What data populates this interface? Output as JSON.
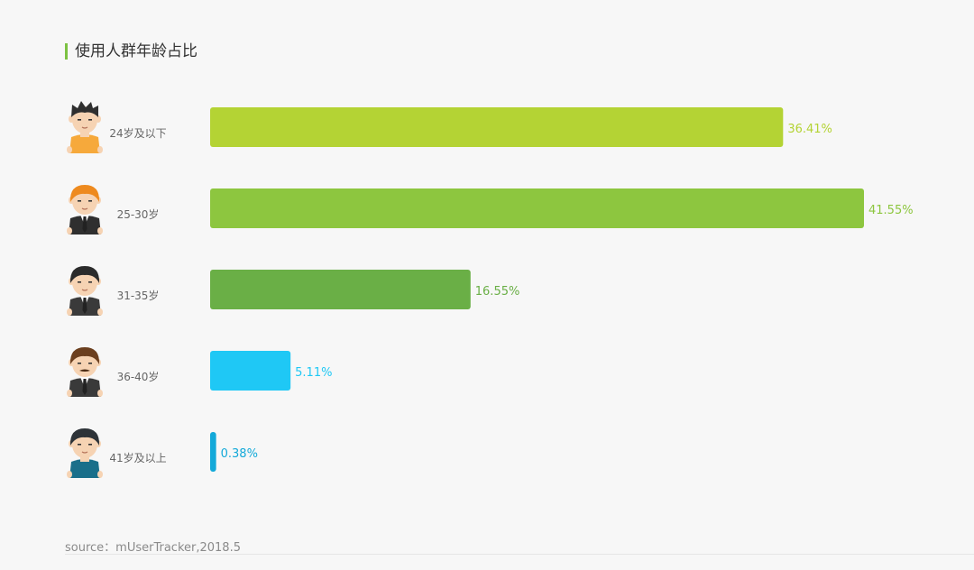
{
  "header": {
    "title": "使用人群年龄占比",
    "accent_color": "#7cc242"
  },
  "chart_data": {
    "type": "bar",
    "orientation": "horizontal",
    "title": "使用人群年龄占比",
    "categories": [
      "24岁及以下",
      "25-30岁",
      "31-35岁",
      "36-40岁",
      "41岁及以上"
    ],
    "values": [
      36.41,
      41.55,
      16.55,
      5.11,
      0.38
    ],
    "value_labels": [
      "36.41%",
      "41.55%",
      "16.55%",
      "5.11%",
      "0.38%"
    ],
    "colors": [
      "#b4d334",
      "#8dc63f",
      "#6aaf46",
      "#1fc8f5",
      "#13a9d9"
    ],
    "xlim": [
      0,
      41.55
    ],
    "grid": false,
    "legend": "none",
    "category_icons": [
      "avatar-yellow-shirt-icon",
      "avatar-orange-hair-suit-icon",
      "avatar-dark-hair-suit-icon",
      "avatar-mustache-suit-icon",
      "avatar-teal-shirt-icon"
    ]
  },
  "footer": {
    "source": "source：mUserTracker,2018.5"
  }
}
